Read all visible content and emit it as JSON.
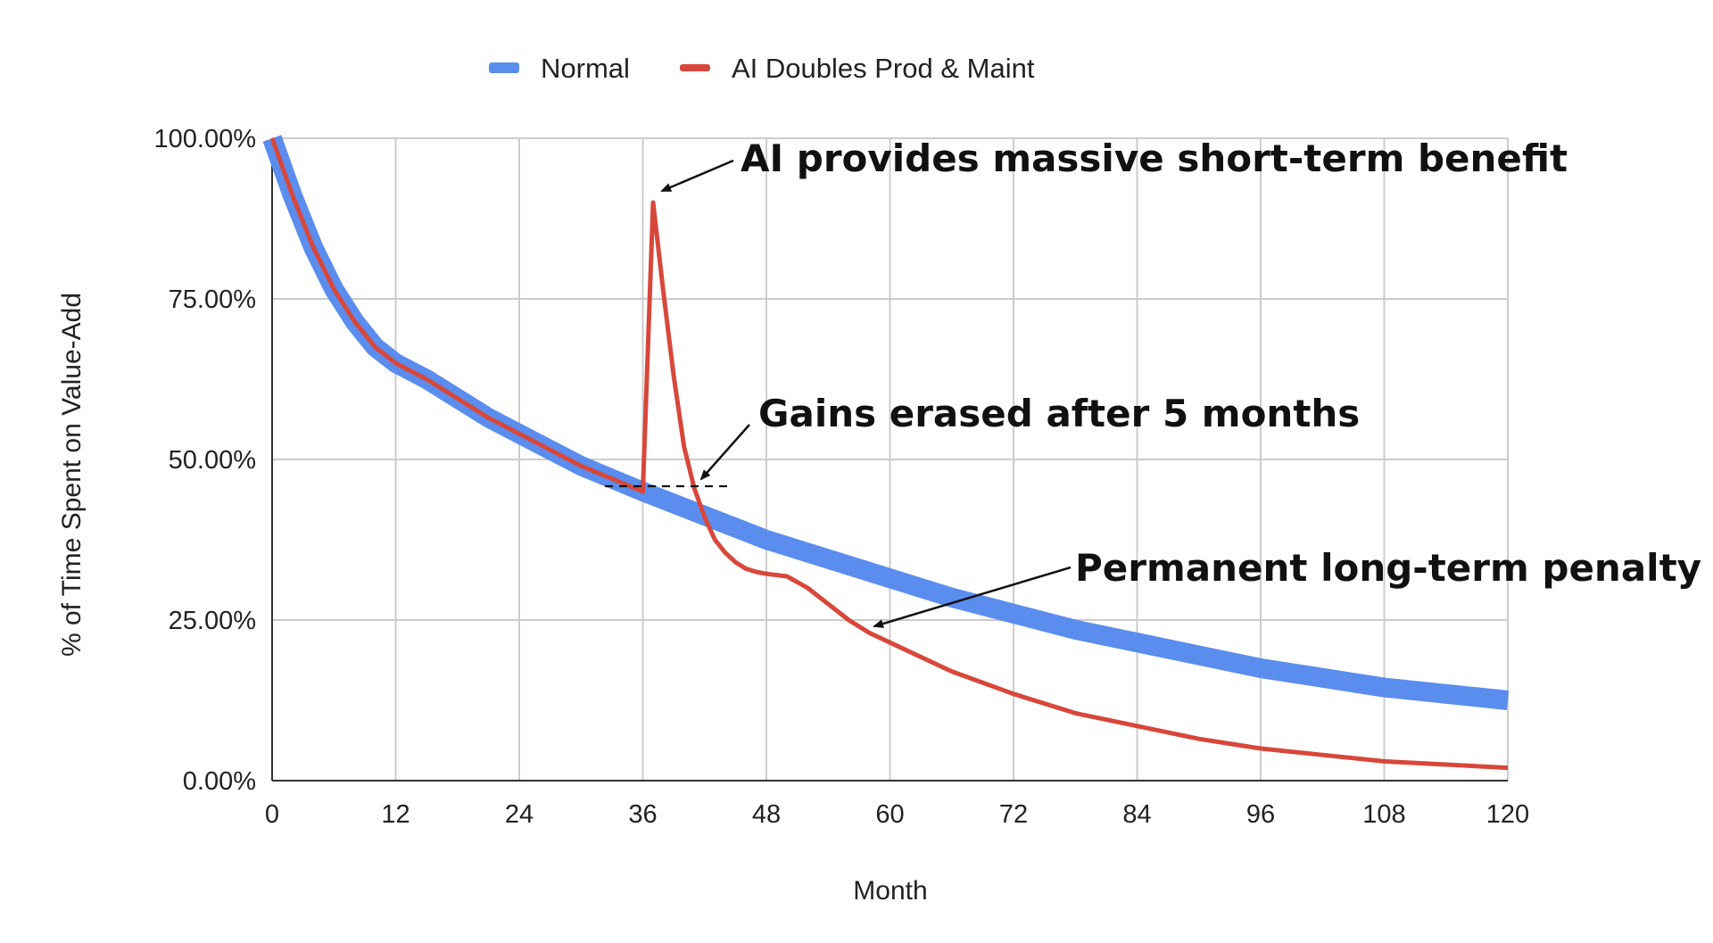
{
  "chart_data": {
    "type": "line",
    "title": "",
    "xlabel": "Month",
    "ylabel": "% of Time Spent on Value-Add",
    "xlim": [
      0,
      120
    ],
    "ylim": [
      0,
      1
    ],
    "x_ticks": [
      "0",
      "12",
      "24",
      "36",
      "48",
      "60",
      "72",
      "84",
      "96",
      "108",
      "120"
    ],
    "y_ticks": [
      "0.00%",
      "25.00%",
      "50.00%",
      "75.00%",
      "100.00%"
    ],
    "grid": true,
    "legend_position": "top",
    "series": [
      {
        "name": "Normal",
        "color": "#5b8def",
        "x": [
          0,
          2,
          4,
          6,
          8,
          10,
          12,
          15,
          18,
          21,
          24,
          27,
          30,
          33,
          36,
          40,
          44,
          48,
          54,
          60,
          66,
          72,
          78,
          84,
          90,
          96,
          102,
          108,
          114,
          120
        ],
        "y": [
          1.0,
          0.91,
          0.83,
          0.765,
          0.715,
          0.675,
          0.65,
          0.625,
          0.595,
          0.565,
          0.54,
          0.515,
          0.49,
          0.47,
          0.45,
          0.425,
          0.4,
          0.375,
          0.345,
          0.315,
          0.285,
          0.26,
          0.235,
          0.215,
          0.195,
          0.175,
          0.16,
          0.145,
          0.135,
          0.125
        ]
      },
      {
        "name": "AI Doubles Prod & Maint",
        "color": "#d8473a",
        "x": [
          0,
          2,
          4,
          6,
          8,
          10,
          12,
          15,
          18,
          21,
          24,
          27,
          30,
          33,
          36,
          37,
          38,
          39,
          40,
          41,
          42,
          43,
          44,
          45,
          46,
          47,
          48,
          50,
          52,
          54,
          56,
          58,
          60,
          66,
          72,
          78,
          84,
          90,
          96,
          102,
          108,
          114,
          120
        ],
        "y": [
          1.0,
          0.91,
          0.83,
          0.765,
          0.715,
          0.675,
          0.65,
          0.625,
          0.595,
          0.565,
          0.54,
          0.515,
          0.49,
          0.47,
          0.45,
          0.9,
          0.76,
          0.63,
          0.52,
          0.455,
          0.41,
          0.375,
          0.355,
          0.34,
          0.33,
          0.325,
          0.322,
          0.318,
          0.3,
          0.275,
          0.25,
          0.23,
          0.215,
          0.17,
          0.135,
          0.105,
          0.085,
          0.065,
          0.05,
          0.04,
          0.03,
          0.025,
          0.02
        ]
      }
    ],
    "annotations": [
      {
        "text": "AI provides massive short-term benefit"
      },
      {
        "text": "Gains erased after 5 months"
      },
      {
        "text": "Permanent long-term penalty"
      }
    ]
  }
}
